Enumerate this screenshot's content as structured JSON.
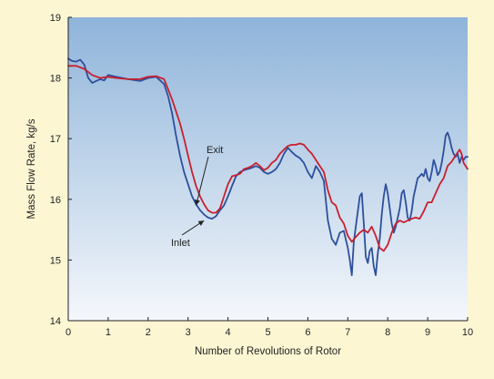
{
  "chart_data": {
    "type": "line",
    "xlabel": "Number of Revolutions of Rotor",
    "ylabel": "Mass Flow Rate, kg/s",
    "xlim": [
      0,
      10
    ],
    "ylim": [
      14,
      19
    ],
    "xticks": [
      "0",
      "1",
      "2",
      "3",
      "4",
      "5",
      "6",
      "7",
      "8",
      "9",
      "10"
    ],
    "yticks": [
      "14",
      "15",
      "16",
      "17",
      "18",
      "19"
    ],
    "grid": false,
    "legend": "none",
    "background": {
      "top": "#8fb4da",
      "bottom": "#f4f7fb"
    },
    "page_background": "#fdf6d3",
    "annotations": [
      {
        "text": "Exit",
        "target": [
          3.2,
          15.9
        ],
        "series": "Exit"
      },
      {
        "text": "Inlet",
        "target": [
          3.4,
          15.65
        ],
        "series": "Inlet"
      }
    ],
    "series": [
      {
        "name": "Inlet",
        "color": "#2d4f9c",
        "x": [
          0,
          0.1,
          0.2,
          0.3,
          0.4,
          0.5,
          0.6,
          0.7,
          0.8,
          0.9,
          1.0,
          1.2,
          1.5,
          1.8,
          2.0,
          2.2,
          2.4,
          2.5,
          2.6,
          2.7,
          2.8,
          2.9,
          3.0,
          3.1,
          3.2,
          3.3,
          3.4,
          3.5,
          3.6,
          3.7,
          3.8,
          3.9,
          4.0,
          4.1,
          4.2,
          4.3,
          4.4,
          4.5,
          4.6,
          4.7,
          4.8,
          4.9,
          5.0,
          5.1,
          5.2,
          5.3,
          5.4,
          5.5,
          5.6,
          5.7,
          5.8,
          5.9,
          6.0,
          6.1,
          6.2,
          6.3,
          6.4,
          6.5,
          6.6,
          6.7,
          6.8,
          6.9,
          7.0,
          7.05,
          7.1,
          7.15,
          7.2,
          7.25,
          7.3,
          7.35,
          7.4,
          7.45,
          7.5,
          7.55,
          7.6,
          7.65,
          7.7,
          7.75,
          7.8,
          7.85,
          7.9,
          7.95,
          8.0,
          8.05,
          8.1,
          8.15,
          8.2,
          8.25,
          8.3,
          8.35,
          8.4,
          8.45,
          8.5,
          8.55,
          8.6,
          8.65,
          8.7,
          8.75,
          8.8,
          8.85,
          8.9,
          8.95,
          9.0,
          9.05,
          9.1,
          9.15,
          9.2,
          9.25,
          9.3,
          9.35,
          9.4,
          9.45,
          9.5,
          9.55,
          9.6,
          9.65,
          9.7,
          9.75,
          9.8,
          9.85,
          9.9,
          9.95,
          10.0
        ],
        "y": [
          18.32,
          18.28,
          18.27,
          18.3,
          18.22,
          18.0,
          17.92,
          17.95,
          17.98,
          17.96,
          18.05,
          18.02,
          17.98,
          17.95,
          18.0,
          18.02,
          17.9,
          17.7,
          17.42,
          17.05,
          16.72,
          16.45,
          16.25,
          16.05,
          15.92,
          15.82,
          15.75,
          15.7,
          15.68,
          15.72,
          15.82,
          15.9,
          16.05,
          16.22,
          16.38,
          16.45,
          16.48,
          16.5,
          16.52,
          16.55,
          16.52,
          16.45,
          16.42,
          16.45,
          16.5,
          16.6,
          16.75,
          16.85,
          16.78,
          16.72,
          16.68,
          16.6,
          16.45,
          16.35,
          16.55,
          16.45,
          16.3,
          15.65,
          15.35,
          15.25,
          15.45,
          15.48,
          15.2,
          15.0,
          14.75,
          15.3,
          15.55,
          15.8,
          16.05,
          16.1,
          15.6,
          15.05,
          14.95,
          15.15,
          15.2,
          14.9,
          14.75,
          15.1,
          15.35,
          15.75,
          16.05,
          16.25,
          16.1,
          15.85,
          15.6,
          15.45,
          15.55,
          15.7,
          15.85,
          16.1,
          16.15,
          15.95,
          15.7,
          15.65,
          15.8,
          16.05,
          16.2,
          16.35,
          16.38,
          16.42,
          16.38,
          16.5,
          16.35,
          16.3,
          16.45,
          16.65,
          16.55,
          16.4,
          16.45,
          16.6,
          16.8,
          17.05,
          17.1,
          17.0,
          16.85,
          16.75,
          16.7,
          16.75,
          16.6,
          16.7,
          16.65,
          16.7,
          16.7
        ]
      },
      {
        "name": "Exit",
        "color": "#c8202e",
        "x": [
          0,
          0.2,
          0.4,
          0.6,
          0.8,
          1.0,
          1.2,
          1.5,
          1.8,
          2.0,
          2.2,
          2.4,
          2.6,
          2.7,
          2.8,
          2.9,
          3.0,
          3.1,
          3.2,
          3.3,
          3.4,
          3.5,
          3.6,
          3.7,
          3.8,
          3.9,
          4.0,
          4.1,
          4.2,
          4.3,
          4.4,
          4.5,
          4.6,
          4.7,
          4.8,
          4.9,
          5.0,
          5.1,
          5.2,
          5.3,
          5.4,
          5.5,
          5.6,
          5.7,
          5.8,
          5.9,
          6.0,
          6.1,
          6.2,
          6.3,
          6.4,
          6.5,
          6.6,
          6.7,
          6.8,
          6.9,
          7.0,
          7.1,
          7.2,
          7.3,
          7.4,
          7.5,
          7.6,
          7.7,
          7.8,
          7.9,
          8.0,
          8.1,
          8.2,
          8.3,
          8.4,
          8.5,
          8.6,
          8.7,
          8.8,
          8.9,
          9.0,
          9.1,
          9.2,
          9.3,
          9.4,
          9.5,
          9.6,
          9.7,
          9.8,
          9.85,
          9.9,
          9.95,
          10.0
        ],
        "y": [
          18.2,
          18.2,
          18.15,
          18.05,
          18.0,
          18.02,
          18.0,
          17.98,
          17.98,
          18.02,
          18.03,
          17.98,
          17.65,
          17.45,
          17.25,
          17.0,
          16.72,
          16.45,
          16.22,
          16.05,
          15.92,
          15.82,
          15.78,
          15.78,
          15.85,
          16.05,
          16.25,
          16.38,
          16.4,
          16.42,
          16.5,
          16.52,
          16.55,
          16.6,
          16.55,
          16.48,
          16.52,
          16.6,
          16.65,
          16.75,
          16.82,
          16.88,
          16.9,
          16.9,
          16.92,
          16.9,
          16.82,
          16.75,
          16.65,
          16.55,
          16.45,
          16.15,
          15.95,
          15.9,
          15.7,
          15.6,
          15.4,
          15.3,
          15.38,
          15.45,
          15.5,
          15.45,
          15.55,
          15.4,
          15.2,
          15.15,
          15.25,
          15.45,
          15.6,
          15.65,
          15.62,
          15.65,
          15.68,
          15.7,
          15.68,
          15.8,
          15.95,
          15.95,
          16.1,
          16.25,
          16.35,
          16.55,
          16.62,
          16.72,
          16.82,
          16.75,
          16.6,
          16.55,
          16.5
        ]
      }
    ]
  }
}
